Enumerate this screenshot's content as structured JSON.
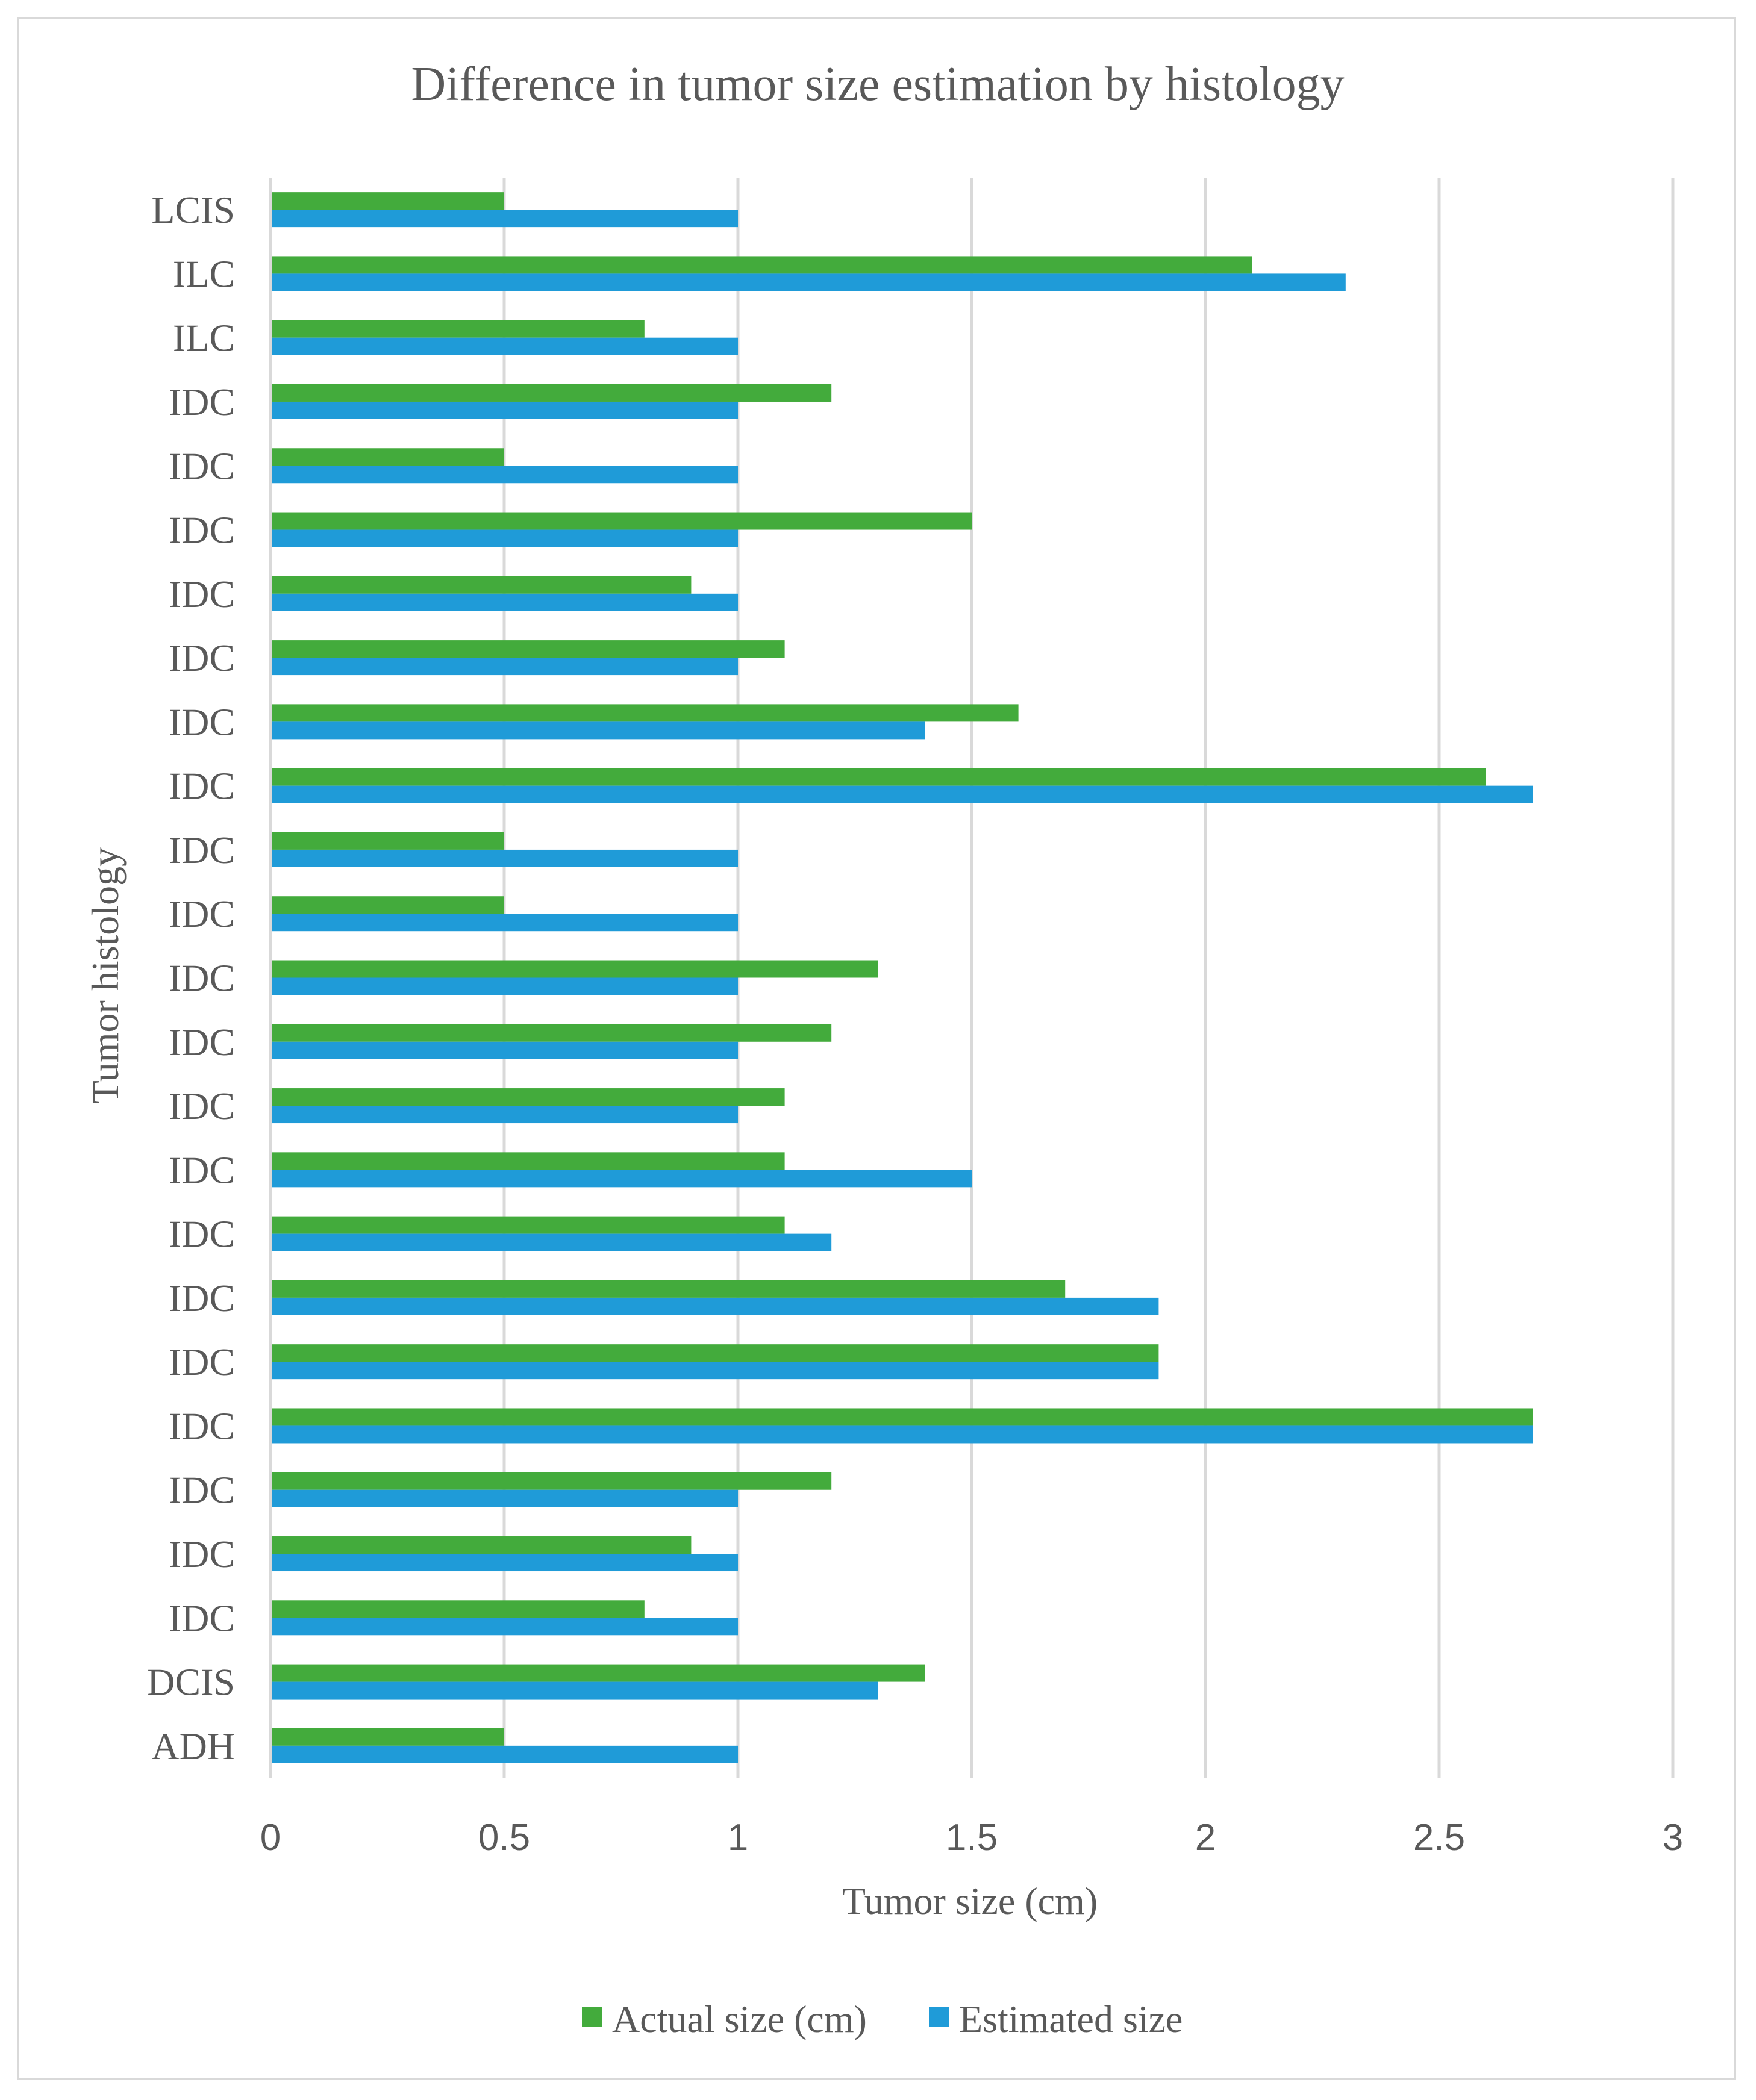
{
  "chart_data": {
    "type": "bar",
    "orientation": "horizontal",
    "title": "Difference in tumor size estimation by histology",
    "xlabel": "Tumor size (cm)",
    "ylabel": "Tumor histology",
    "xlim": [
      0,
      3
    ],
    "xticks": [
      "0",
      "0.5",
      "1",
      "1.5",
      "2",
      "2.5",
      "3"
    ],
    "grid": true,
    "legend_position": "bottom",
    "categories": [
      "ADH",
      "DCIS",
      "IDC",
      "IDC",
      "IDC",
      "IDC",
      "IDC",
      "IDC",
      "IDC",
      "IDC",
      "IDC",
      "IDC",
      "IDC",
      "IDC",
      "IDC",
      "IDC",
      "IDC",
      "IDC",
      "IDC",
      "IDC",
      "IDC",
      "IDC",
      "ILC",
      "ILC",
      "LCIS"
    ],
    "series": [
      {
        "name": "Actual size (cm)",
        "color": "#43ab3c",
        "values": [
          0.5,
          1.4,
          0.8,
          0.9,
          1.2,
          2.7,
          1.9,
          1.7,
          1.1,
          1.1,
          1.1,
          1.2,
          1.3,
          0.5,
          0.5,
          2.6,
          1.6,
          1.1,
          0.9,
          1.5,
          0.5,
          1.2,
          0.8,
          2.1,
          0.5
        ]
      },
      {
        "name": "Estimated size",
        "color": "#1f9bd8",
        "values": [
          1.0,
          1.3,
          1.0,
          1.0,
          1.0,
          2.7,
          1.9,
          1.9,
          1.2,
          1.5,
          1.0,
          1.0,
          1.0,
          1.0,
          1.0,
          2.7,
          1.4,
          1.0,
          1.0,
          1.0,
          1.0,
          1.0,
          1.0,
          2.3,
          1.0
        ]
      }
    ]
  }
}
